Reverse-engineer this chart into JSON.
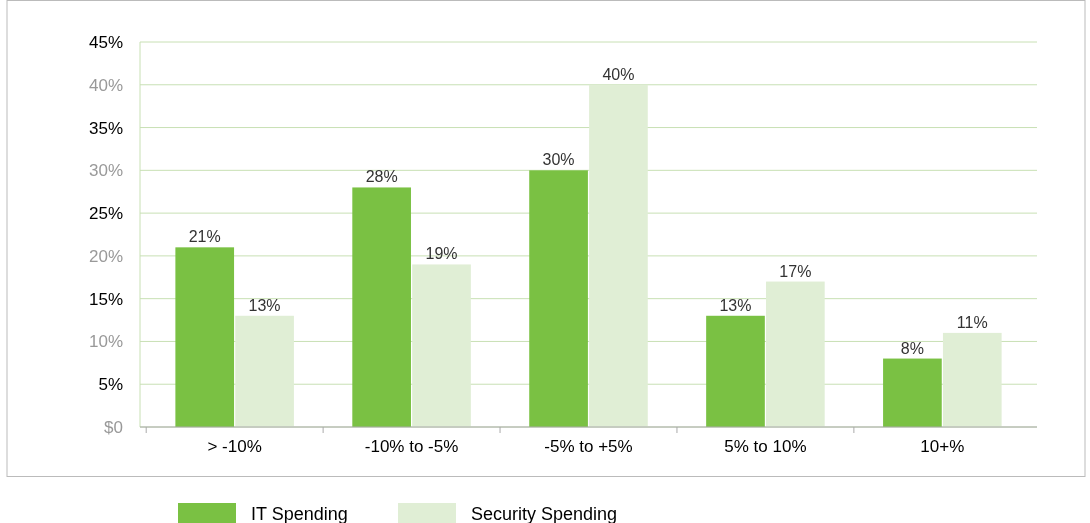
{
  "chart_data": {
    "type": "bar",
    "categories": [
      "> -10%",
      "-10% to -5%",
      "-5% to +5%",
      "5% to 10%",
      "10+%"
    ],
    "series": [
      {
        "name": "IT Spending",
        "color": "#7ac143",
        "values": [
          21,
          28,
          30,
          13,
          8
        ],
        "value_labels": [
          "21%",
          "28%",
          "30%",
          "13%",
          "8%"
        ]
      },
      {
        "name": "Security Spending",
        "color": "#e0eed5",
        "values": [
          13,
          19,
          40,
          17,
          11
        ],
        "value_labels": [
          "13%",
          "19%",
          "40%",
          "17%",
          "11%"
        ]
      }
    ],
    "ylim": [
      0,
      45
    ],
    "yticks": [
      {
        "value": 0,
        "label": "$0"
      },
      {
        "value": 5,
        "label": "5%"
      },
      {
        "value": 10,
        "label": "10%"
      },
      {
        "value": 15,
        "label": "15%"
      },
      {
        "value": 20,
        "label": "20%"
      },
      {
        "value": 25,
        "label": "25%"
      },
      {
        "value": 30,
        "label": "30%"
      },
      {
        "value": 35,
        "label": "35%"
      },
      {
        "value": 40,
        "label": "40%"
      },
      {
        "value": 45,
        "label": "45%"
      }
    ],
    "grid": "y",
    "legend": "bottom"
  }
}
